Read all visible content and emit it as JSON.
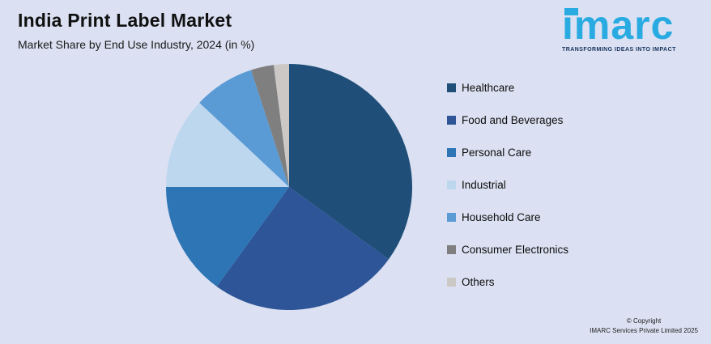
{
  "header": {
    "title": "India Print Label Market",
    "subtitle": "Market Share by End Use Industry, 2024 (in %)"
  },
  "logo": {
    "text": "imarc",
    "tagline": "TRANSFORMING IDEAS INTO IMPACT",
    "brand_color": "#29abe2",
    "tagline_color": "#16325c"
  },
  "chart_data": {
    "type": "pie",
    "title": "India Print Label Market",
    "subtitle": "Market Share by End Use Industry, 2024 (in %)",
    "legend_position": "right",
    "start_angle_deg": 0,
    "direction": "clockwise",
    "slices": [
      {
        "label": "Healthcare",
        "value": 35,
        "color": "#1f4e79"
      },
      {
        "label": "Food and Beverages",
        "value": 25,
        "color": "#2e5597"
      },
      {
        "label": "Personal Care",
        "value": 15,
        "color": "#2e75b6"
      },
      {
        "label": "Industrial",
        "value": 12,
        "color": "#bdd7ee"
      },
      {
        "label": "Household Care",
        "value": 8,
        "color": "#5b9bd5"
      },
      {
        "label": "Consumer Electronics",
        "value": 3,
        "color": "#7f7f7f"
      },
      {
        "label": "Others",
        "value": 2,
        "color": "#cbc8c6"
      }
    ]
  },
  "footer": {
    "copyright_line1": "© Copyright",
    "copyright_line2": "IMARC Services Private Limited 2025"
  }
}
